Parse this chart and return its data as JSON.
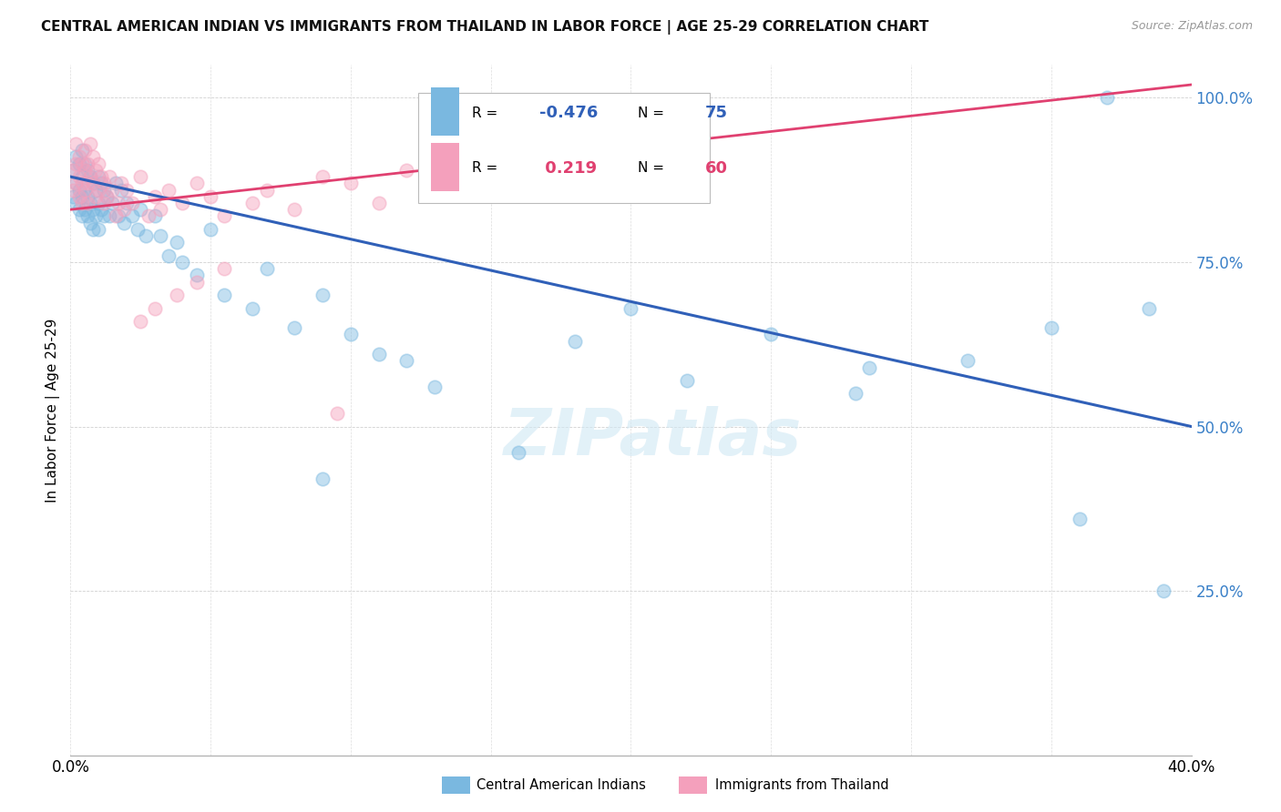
{
  "title": "CENTRAL AMERICAN INDIAN VS IMMIGRANTS FROM THAILAND IN LABOR FORCE | AGE 25-29 CORRELATION CHART",
  "source": "Source: ZipAtlas.com",
  "ylabel": "In Labor Force | Age 25-29",
  "xlim": [
    0.0,
    0.4
  ],
  "ylim": [
    0.0,
    1.05
  ],
  "blue_color": "#7ab8e0",
  "pink_color": "#f4a0bc",
  "blue_line_color": "#3060b8",
  "pink_line_color": "#e04070",
  "legend_R_blue": "-0.476",
  "legend_N_blue": "75",
  "legend_R_pink": "0.219",
  "legend_N_pink": "60",
  "blue_line_x0": 0.0,
  "blue_line_y0": 0.88,
  "blue_line_x1": 0.4,
  "blue_line_y1": 0.5,
  "pink_line_x0": 0.0,
  "pink_line_y0": 0.83,
  "pink_line_x1": 0.4,
  "pink_line_y1": 1.02,
  "blue_scatter_x": [
    0.001,
    0.001,
    0.002,
    0.002,
    0.002,
    0.003,
    0.003,
    0.003,
    0.004,
    0.004,
    0.004,
    0.004,
    0.005,
    0.005,
    0.005,
    0.006,
    0.006,
    0.006,
    0.007,
    0.007,
    0.007,
    0.008,
    0.008,
    0.008,
    0.009,
    0.009,
    0.01,
    0.01,
    0.01,
    0.011,
    0.011,
    0.012,
    0.012,
    0.013,
    0.014,
    0.015,
    0.016,
    0.017,
    0.018,
    0.019,
    0.02,
    0.022,
    0.024,
    0.025,
    0.027,
    0.03,
    0.032,
    0.035,
    0.038,
    0.04,
    0.045,
    0.05,
    0.055,
    0.065,
    0.07,
    0.08,
    0.09,
    0.1,
    0.11,
    0.12,
    0.09,
    0.13,
    0.16,
    0.18,
    0.22,
    0.25,
    0.285,
    0.32,
    0.36,
    0.39,
    0.2,
    0.28,
    0.35,
    0.37,
    0.385
  ],
  "blue_scatter_y": [
    0.89,
    0.85,
    0.91,
    0.87,
    0.84,
    0.9,
    0.86,
    0.83,
    0.92,
    0.88,
    0.85,
    0.82,
    0.9,
    0.86,
    0.83,
    0.89,
    0.85,
    0.82,
    0.88,
    0.84,
    0.81,
    0.87,
    0.83,
    0.8,
    0.86,
    0.82,
    0.88,
    0.84,
    0.8,
    0.87,
    0.83,
    0.86,
    0.82,
    0.85,
    0.82,
    0.84,
    0.87,
    0.82,
    0.86,
    0.81,
    0.84,
    0.82,
    0.8,
    0.83,
    0.79,
    0.82,
    0.79,
    0.76,
    0.78,
    0.75,
    0.73,
    0.8,
    0.7,
    0.68,
    0.74,
    0.65,
    0.7,
    0.64,
    0.61,
    0.6,
    0.42,
    0.56,
    0.46,
    0.63,
    0.57,
    0.64,
    0.59,
    0.6,
    0.36,
    0.25,
    0.68,
    0.55,
    0.65,
    1.0,
    0.68
  ],
  "pink_scatter_x": [
    0.001,
    0.001,
    0.002,
    0.002,
    0.002,
    0.003,
    0.003,
    0.003,
    0.004,
    0.004,
    0.004,
    0.005,
    0.005,
    0.005,
    0.006,
    0.006,
    0.006,
    0.007,
    0.007,
    0.008,
    0.008,
    0.009,
    0.009,
    0.01,
    0.01,
    0.011,
    0.012,
    0.012,
    0.013,
    0.014,
    0.015,
    0.016,
    0.017,
    0.018,
    0.019,
    0.02,
    0.022,
    0.025,
    0.028,
    0.03,
    0.032,
    0.035,
    0.04,
    0.045,
    0.05,
    0.055,
    0.065,
    0.07,
    0.08,
    0.09,
    0.1,
    0.11,
    0.12,
    0.14,
    0.025,
    0.03,
    0.038,
    0.045,
    0.055,
    0.095
  ],
  "pink_scatter_y": [
    0.89,
    0.86,
    0.93,
    0.9,
    0.87,
    0.91,
    0.88,
    0.85,
    0.9,
    0.87,
    0.84,
    0.92,
    0.89,
    0.86,
    0.9,
    0.87,
    0.84,
    0.93,
    0.88,
    0.91,
    0.87,
    0.89,
    0.85,
    0.9,
    0.86,
    0.88,
    0.84,
    0.87,
    0.85,
    0.88,
    0.86,
    0.82,
    0.84,
    0.87,
    0.83,
    0.86,
    0.84,
    0.88,
    0.82,
    0.85,
    0.83,
    0.86,
    0.84,
    0.87,
    0.85,
    0.82,
    0.84,
    0.86,
    0.83,
    0.88,
    0.87,
    0.84,
    0.89,
    0.86,
    0.66,
    0.68,
    0.7,
    0.72,
    0.74,
    0.52
  ]
}
